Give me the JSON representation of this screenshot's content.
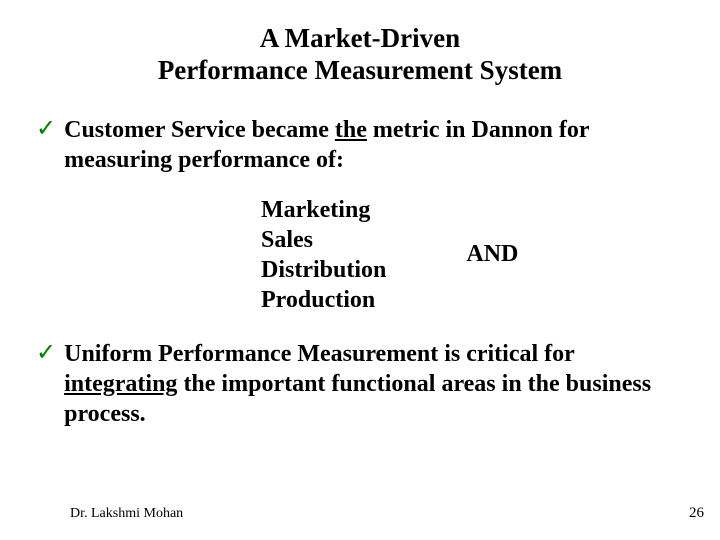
{
  "title_line1": "A  Market-Driven",
  "title_line2": "Performance  Measurement  System",
  "bullets": {
    "b1_pre": "Customer Service became ",
    "b1_underline": "the",
    "b1_post": " metric in Dannon for measuring performance of:",
    "b2_pre": "Uniform Performance Measurement is critical for ",
    "b2_underline": "integrating",
    "b2_post": " the important functional areas in the business process."
  },
  "sublist": {
    "l1": "Marketing",
    "l2": "Sales",
    "l3": "Distribution",
    "l4": "Production",
    "and": "AND"
  },
  "footer": {
    "author": "Dr. Lakshmi Mohan",
    "page": "26"
  },
  "colors": {
    "check": "#008000",
    "text": "#000000",
    "background": "#ffffff"
  }
}
